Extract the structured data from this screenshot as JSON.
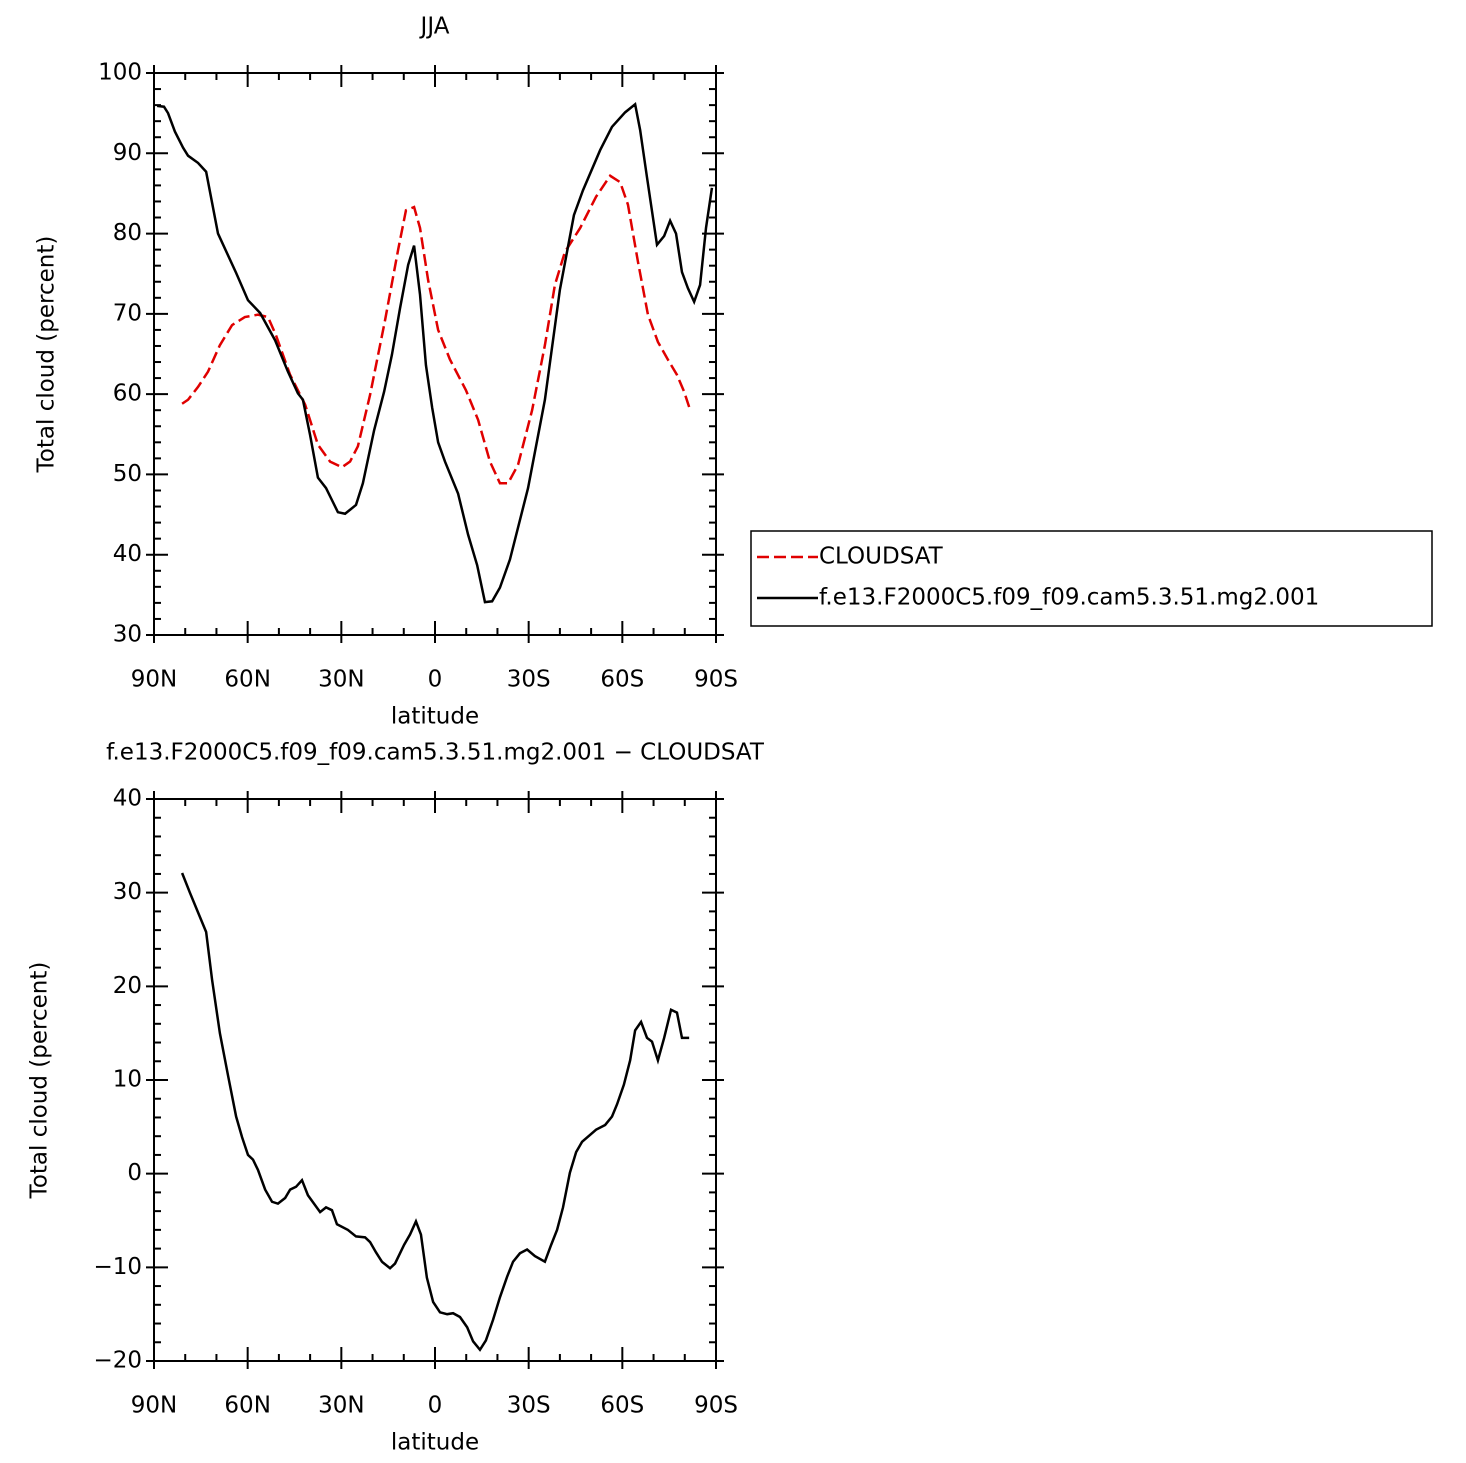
{
  "chart_data": [
    {
      "type": "line",
      "title": "JJA",
      "xlabel": "latitude",
      "ylabel": "Total cloud (percent)",
      "xlim": [
        90,
        -90
      ],
      "ylim": [
        30,
        100
      ],
      "xticks": [
        {
          "value": 90,
          "label": "90N"
        },
        {
          "value": 60,
          "label": "60N"
        },
        {
          "value": 30,
          "label": "30N"
        },
        0,
        {
          "value": -30,
          "label": "30S"
        },
        {
          "value": -60,
          "label": "60S"
        },
        {
          "value": -90,
          "label": "90S"
        }
      ],
      "yticks": [
        30,
        40,
        50,
        60,
        70,
        80,
        90,
        100
      ],
      "legend": "right",
      "series": [
        {
          "name": "CLOUDSAT",
          "color": "#e00000",
          "dash": true,
          "x": [
            81.0,
            79.1,
            75.9,
            72.7,
            68.9,
            65.0,
            60.9,
            56.7,
            53.5,
            51.0,
            46.4,
            41.6,
            37.5,
            33.6,
            29.8,
            27.2,
            24.7,
            20.8,
            16.0,
            11.8,
            9.3,
            6.7,
            4.8,
            2.2,
            -1.0,
            -4.8,
            -9.9,
            -13.8,
            -17.6,
            -20.8,
            -23.4,
            -26.6,
            -31.1,
            -35.2,
            -38.4,
            -41.6,
            -46.5,
            -51.6,
            -56.1,
            -59.3,
            -61.8,
            -65.0,
            -68.2,
            -71.4,
            -74.6,
            -77.5,
            -79.8,
            -81.4
          ],
          "values": [
            58.8,
            59.3,
            60.9,
            62.8,
            66.1,
            68.6,
            69.6,
            69.9,
            69.6,
            67.4,
            62.4,
            58.7,
            53.7,
            51.6,
            50.9,
            51.6,
            53.5,
            59.9,
            69.2,
            78.0,
            82.9,
            83.3,
            80.7,
            74.2,
            68.0,
            64.3,
            60.5,
            56.8,
            51.6,
            48.9,
            48.9,
            51.2,
            58.0,
            66.1,
            73.6,
            77.7,
            80.7,
            84.6,
            87.2,
            86.4,
            83.6,
            76.5,
            69.9,
            66.5,
            64.3,
            62.4,
            60.3,
            58.4
          ]
        },
        {
          "name": "f.e13.F2000C5.f09_f09.cam5.3.51.mg2.001",
          "color": "#000000",
          "dash": false,
          "x": [
            89.0,
            86.8,
            85.5,
            83.3,
            80.7,
            79.1,
            75.9,
            73.3,
            69.5,
            63.7,
            59.9,
            56.0,
            51.2,
            47.1,
            43.9,
            42.3,
            40.0,
            37.5,
            34.9,
            33.0,
            31.1,
            28.8,
            27.2,
            25.3,
            23.1,
            19.5,
            16.3,
            13.8,
            11.2,
            8.6,
            6.7,
            4.8,
            2.9,
            0.9,
            -1.0,
            -3.2,
            -7.4,
            -10.6,
            -13.5,
            -16.0,
            -18.3,
            -20.8,
            -24.0,
            -29.8,
            -35.2,
            -40.0,
            -44.5,
            -47.4,
            -52.9,
            -56.7,
            -60.9,
            -64.1,
            -65.7,
            -67.9,
            -71.1,
            -73.4,
            -75.3,
            -77.2,
            -79.1,
            -81.0,
            -83.0,
            -84.9,
            -86.8,
            -88.7
          ],
          "values": [
            95.9,
            95.8,
            95.0,
            92.7,
            90.7,
            89.7,
            88.8,
            87.7,
            80.0,
            75.1,
            71.7,
            70.1,
            66.7,
            62.8,
            60.1,
            59.3,
            54.9,
            49.6,
            48.3,
            46.8,
            45.3,
            45.1,
            45.6,
            46.2,
            48.9,
            55.5,
            60.3,
            64.9,
            70.7,
            76.1,
            78.5,
            72.4,
            63.6,
            58.3,
            54.0,
            51.6,
            47.6,
            42.5,
            38.7,
            34.1,
            34.2,
            35.9,
            39.4,
            48.3,
            59.3,
            73.0,
            82.3,
            85.4,
            90.4,
            93.3,
            95.1,
            96.1,
            92.9,
            87.0,
            78.6,
            79.7,
            81.6,
            80.0,
            75.2,
            73.2,
            71.5,
            73.6,
            80.7,
            85.7
          ]
        }
      ]
    },
    {
      "type": "line",
      "title": "f.e13.F2000C5.f09_f09.cam5.3.51.mg2.001 − CLOUDSAT",
      "xlabel": "latitude",
      "ylabel": "Total cloud (percent)",
      "xlim": [
        90,
        -90
      ],
      "ylim": [
        -20,
        40
      ],
      "xticks": [
        {
          "value": 90,
          "label": "90N"
        },
        {
          "value": 60,
          "label": "60N"
        },
        {
          "value": 30,
          "label": "30N"
        },
        0,
        {
          "value": -30,
          "label": "30S"
        },
        {
          "value": -60,
          "label": "60S"
        },
        {
          "value": -90,
          "label": "90S"
        }
      ],
      "yticks": [
        {
          "value": -20,
          "label": "−20"
        },
        {
          "value": -10,
          "label": "−10"
        },
        0,
        10,
        20,
        30,
        40
      ],
      "series": [
        {
          "color": "#000000",
          "dash": false,
          "x": [
            81.0,
            78.5,
            75.9,
            73.3,
            71.4,
            68.9,
            66.3,
            63.7,
            61.8,
            59.9,
            58.3,
            56.7,
            54.4,
            52.2,
            50.3,
            48.0,
            46.4,
            44.5,
            42.6,
            40.7,
            36.8,
            34.9,
            33.0,
            31.4,
            27.9,
            25.3,
            22.4,
            20.8,
            18.9,
            17.0,
            14.4,
            12.8,
            9.9,
            8.0,
            6.1,
            4.5,
            2.6,
            0.6,
            -1.6,
            -3.9,
            -5.8,
            -8.0,
            -10.3,
            -12.2,
            -14.4,
            -16.3,
            -18.6,
            -20.8,
            -23.1,
            -25.0,
            -27.2,
            -29.5,
            -32.0,
            -35.2,
            -37.2,
            -39.1,
            -41.0,
            -43.2,
            -45.2,
            -47.1,
            -51.6,
            -54.5,
            -56.7,
            -58.3,
            -60.5,
            -62.5,
            -64.1,
            -66.0,
            -67.9,
            -69.5,
            -71.4,
            -73.4,
            -75.6,
            -77.5,
            -79.1,
            -81.4
          ],
          "values": [
            32.1,
            30.0,
            27.9,
            25.8,
            20.7,
            15.0,
            10.5,
            6.1,
            3.9,
            2.0,
            1.5,
            0.4,
            -1.7,
            -3.0,
            -3.2,
            -2.6,
            -1.7,
            -1.4,
            -0.7,
            -2.3,
            -4.1,
            -3.6,
            -3.9,
            -5.4,
            -6.0,
            -6.7,
            -6.8,
            -7.3,
            -8.4,
            -9.4,
            -10.1,
            -9.6,
            -7.6,
            -6.5,
            -5.1,
            -6.5,
            -11.1,
            -13.7,
            -14.8,
            -15.0,
            -14.9,
            -15.3,
            -16.4,
            -17.9,
            -18.8,
            -17.8,
            -15.6,
            -13.2,
            -11.0,
            -9.4,
            -8.5,
            -8.1,
            -8.8,
            -9.4,
            -7.6,
            -6.0,
            -3.6,
            0.1,
            2.3,
            3.4,
            4.7,
            5.2,
            6.1,
            7.4,
            9.5,
            12.1,
            15.3,
            16.2,
            14.5,
            14.1,
            12.1,
            14.5,
            17.5,
            17.2,
            14.5,
            14.5
          ]
        }
      ]
    }
  ]
}
